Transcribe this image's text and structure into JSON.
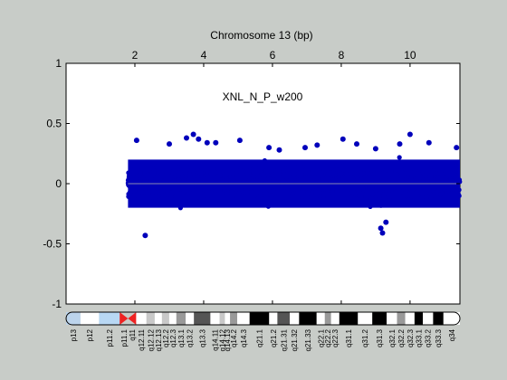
{
  "chart_data": {
    "type": "scatter",
    "title": "Chromosome 13 (bp)",
    "annotation": "XNL_N_P_w200",
    "xlim": [
      0,
      11.45
    ],
    "ylim": [
      -1,
      1
    ],
    "x_ticks": [
      2,
      4,
      6,
      8,
      10
    ],
    "x_tick_labels": [
      "2",
      "4",
      "6",
      "8",
      "10"
    ],
    "x_ticks_position": "top",
    "y_ticks": [
      1,
      0.5,
      0,
      -0.5,
      -1
    ],
    "y_tick_labels": [
      "1",
      "0.5",
      "0",
      "-0.5",
      "-1"
    ],
    "grid": false,
    "x_range_of_points": [
      1.8,
      11.45
    ],
    "points_y_band": [
      -0.2,
      0.2
    ],
    "points_approx_spread_sd": 0.09,
    "baseline_y": 0,
    "outliers": [
      {
        "x": 2.05,
        "y": 0.36
      },
      {
        "x": 2.3,
        "y": -0.43
      },
      {
        "x": 3.0,
        "y": 0.33
      },
      {
        "x": 3.5,
        "y": 0.38
      },
      {
        "x": 3.7,
        "y": 0.41
      },
      {
        "x": 3.85,
        "y": 0.37
      },
      {
        "x": 4.1,
        "y": 0.34
      },
      {
        "x": 4.35,
        "y": 0.34
      },
      {
        "x": 5.05,
        "y": 0.36
      },
      {
        "x": 5.9,
        "y": 0.3
      },
      {
        "x": 6.2,
        "y": 0.28
      },
      {
        "x": 6.95,
        "y": 0.3
      },
      {
        "x": 7.3,
        "y": 0.32
      },
      {
        "x": 8.05,
        "y": 0.37
      },
      {
        "x": 8.45,
        "y": 0.33
      },
      {
        "x": 9.0,
        "y": 0.29
      },
      {
        "x": 9.15,
        "y": -0.37
      },
      {
        "x": 9.2,
        "y": -0.41
      },
      {
        "x": 9.3,
        "y": -0.32
      },
      {
        "x": 9.7,
        "y": 0.33
      },
      {
        "x": 10.0,
        "y": 0.41
      },
      {
        "x": 10.55,
        "y": 0.34
      },
      {
        "x": 11.35,
        "y": 0.3
      }
    ],
    "colors": {
      "points": "#0000bb",
      "baseline": "#8a8ab0",
      "background": "#c8ccc8",
      "plot_area": "#ffffff"
    }
  },
  "ideogram": {
    "bands": [
      {
        "label": "p13",
        "stain": "p13"
      },
      {
        "label": "p12",
        "stain": "p12"
      },
      {
        "label": "p11.2",
        "stain": "p11.2"
      },
      {
        "label": "p11.1",
        "stain": "cen"
      },
      {
        "label": "q11",
        "stain": "cen"
      },
      {
        "label": "q12.11",
        "stain": "gneg"
      },
      {
        "label": "q12.12",
        "stain": "gpos25"
      },
      {
        "label": "q12.13",
        "stain": "gneg"
      },
      {
        "label": "q12.2",
        "stain": "gpos25"
      },
      {
        "label": "q12.3",
        "stain": "gneg"
      },
      {
        "label": "q13.1",
        "stain": "gpos50"
      },
      {
        "label": "q13.2",
        "stain": "gneg"
      },
      {
        "label": "q13.3",
        "stain": "gpos75"
      },
      {
        "label": "q14.11",
        "stain": "gneg"
      },
      {
        "label": "q14.12",
        "stain": "gpos25"
      },
      {
        "label": "q14.13",
        "stain": "gneg"
      },
      {
        "label": "q14.2",
        "stain": "gpos50"
      },
      {
        "label": "q14.3",
        "stain": "gneg"
      },
      {
        "label": "q21.1",
        "stain": "gpos100"
      },
      {
        "label": "q21.2",
        "stain": "gneg"
      },
      {
        "label": "q21.31",
        "stain": "gpos75"
      },
      {
        "label": "q21.32",
        "stain": "gneg"
      },
      {
        "label": "q21.33",
        "stain": "gpos100"
      },
      {
        "label": "q22.1",
        "stain": "gneg"
      },
      {
        "label": "q22.2",
        "stain": "gpos50"
      },
      {
        "label": "q22.3",
        "stain": "gneg"
      },
      {
        "label": "q31.1",
        "stain": "gpos100"
      },
      {
        "label": "q31.2",
        "stain": "gneg"
      },
      {
        "label": "q31.3",
        "stain": "gpos100"
      },
      {
        "label": "q32.1",
        "stain": "gneg"
      },
      {
        "label": "q32.2",
        "stain": "gpos50"
      },
      {
        "label": "q32.3",
        "stain": "gneg"
      },
      {
        "label": "q33.1",
        "stain": "gpos100"
      },
      {
        "label": "q33.2",
        "stain": "gneg"
      },
      {
        "label": "q33.3",
        "stain": "gpos100"
      },
      {
        "label": "q34",
        "stain": "gneg"
      }
    ],
    "stain_colors": {
      "p13": "#bcd4ec",
      "p12": "#ffffff",
      "p11.2": "#b8d8f4",
      "cen": "#ee2222",
      "gneg": "#ffffff",
      "gpos25": "#c8c8c8",
      "gpos50": "#999999",
      "gpos75": "#555555",
      "gpos100": "#000000"
    }
  }
}
